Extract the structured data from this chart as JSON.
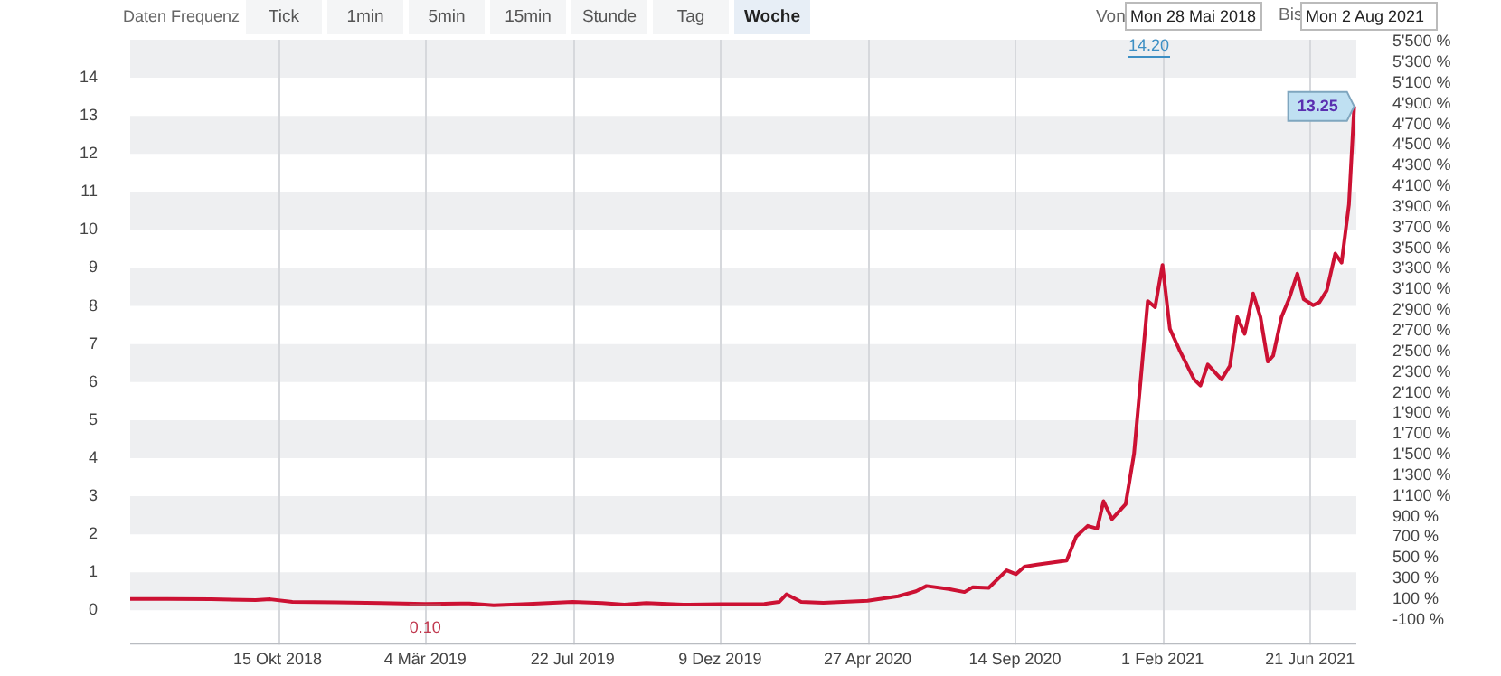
{
  "chart_data": {
    "type": "line",
    "annotations": [
      "Daten Frequenz",
      "Tick",
      "1min",
      "5min",
      "15min",
      "Stunde",
      "Tag",
      "Woche",
      "Von",
      "Mon 28 Mai 2018",
      "Bis",
      "Mon 2 Aug 2021",
      "14.20",
      {
        "text": "0.10",
        "x": "2019-03-04",
        "y": 0.1
      },
      {
        "text": "13.25",
        "x": "2021-08-02",
        "y": 13.25
      }
    ],
    "series": [
      {
        "color": "#cc1133",
        "x": [
          "2018-05-28",
          "2018-07-02",
          "2018-08-13",
          "2018-09-24",
          "2018-10-08",
          "2018-10-29",
          "2018-12-10",
          "2019-01-21",
          "2019-03-04",
          "2019-04-15",
          "2019-05-08",
          "2019-06-10",
          "2019-07-22",
          "2019-08-19",
          "2019-09-09",
          "2019-09-30",
          "2019-11-04",
          "2019-12-09",
          "2020-01-20",
          "2020-02-03",
          "2020-02-10",
          "2020-02-24",
          "2020-03-16",
          "2020-04-27",
          "2020-05-26",
          "2020-06-12",
          "2020-06-22",
          "2020-07-13",
          "2020-07-28",
          "2020-08-05",
          "2020-08-20",
          "2020-09-06",
          "2020-09-15",
          "2020-09-23",
          "2020-10-05",
          "2020-11-02",
          "2020-11-11",
          "2020-11-22",
          "2020-12-01",
          "2020-12-07",
          "2020-12-15",
          "2020-12-28",
          "2021-01-05",
          "2021-01-18",
          "2021-01-25",
          "2021-02-01",
          "2021-02-08",
          "2021-02-17",
          "2021-03-03",
          "2021-03-09",
          "2021-03-16",
          "2021-03-29",
          "2021-04-06",
          "2021-04-13",
          "2021-04-20",
          "2021-04-28",
          "2021-05-05",
          "2021-05-12",
          "2021-05-17",
          "2021-05-25",
          "2021-06-01",
          "2021-06-09",
          "2021-06-15",
          "2021-06-24",
          "2021-06-30",
          "2021-07-07",
          "2021-07-15",
          "2021-07-21",
          "2021-07-28",
          "2021-08-02"
        ],
        "values": [
          0.3,
          0.3,
          0.29,
          0.27,
          0.29,
          0.22,
          0.21,
          0.19,
          0.17,
          0.18,
          0.13,
          0.17,
          0.22,
          0.19,
          0.15,
          0.19,
          0.15,
          0.16,
          0.17,
          0.22,
          0.42,
          0.22,
          0.2,
          0.25,
          0.37,
          0.5,
          0.64,
          0.56,
          0.48,
          0.61,
          0.59,
          1.05,
          0.95,
          1.15,
          1.2,
          1.31,
          1.94,
          2.22,
          2.15,
          2.87,
          2.4,
          2.79,
          4.12,
          8.13,
          7.97,
          9.08,
          7.4,
          6.85,
          6.07,
          5.91,
          6.46,
          6.07,
          6.43,
          7.71,
          7.27,
          8.33,
          7.71,
          6.54,
          6.69,
          7.71,
          8.18,
          8.85,
          8.18,
          8.02,
          8.1,
          8.41,
          9.38,
          9.14,
          10.67,
          13.25
        ]
      }
    ],
    "xlim": [
      "2018-05-28",
      "2021-08-04"
    ],
    "xticks": [
      {
        "value": "2018-10-15",
        "label": "15 Okt 2018"
      },
      {
        "value": "2019-03-04",
        "label": "4 Mär 2019"
      },
      {
        "value": "2019-07-22",
        "label": "22 Jul 2019"
      },
      {
        "value": "2019-12-09",
        "label": "9 Dez 2019"
      },
      {
        "value": "2020-04-27",
        "label": "27 Apr 2020"
      },
      {
        "value": "2020-09-14",
        "label": "14 Sep 2020"
      },
      {
        "value": "2021-02-01",
        "label": "1 Feb 2021"
      },
      {
        "value": "2021-06-21",
        "label": "21 Jun 2021"
      }
    ],
    "ylim": [
      -0.9,
      15
    ],
    "yticks": [
      0,
      1,
      2,
      3,
      4,
      5,
      6,
      7,
      8,
      9,
      10,
      11,
      12,
      13,
      14
    ],
    "y2lim": [
      -340,
      5520
    ],
    "y2ticks": [
      {
        "value": -100,
        "label": "-100 %"
      },
      {
        "value": 100,
        "label": "100 %"
      },
      {
        "value": 300,
        "label": "300 %"
      },
      {
        "value": 500,
        "label": "500 %"
      },
      {
        "value": 700,
        "label": "700 %"
      },
      {
        "value": 900,
        "label": "900 %"
      },
      {
        "value": 1100,
        "label": "1'100 %"
      },
      {
        "value": 1300,
        "label": "1'300 %"
      },
      {
        "value": 1500,
        "label": "1'500 %"
      },
      {
        "value": 1700,
        "label": "1'700 %"
      },
      {
        "value": 1900,
        "label": "1'900 %"
      },
      {
        "value": 2100,
        "label": "2'100 %"
      },
      {
        "value": 2300,
        "label": "2'300 %"
      },
      {
        "value": 2500,
        "label": "2'500 %"
      },
      {
        "value": 2700,
        "label": "2'700 %"
      },
      {
        "value": 2900,
        "label": "2'900 %"
      },
      {
        "value": 3100,
        "label": "3'100 %"
      },
      {
        "value": 3300,
        "label": "3'300 %"
      },
      {
        "value": 3500,
        "label": "3'500 %"
      },
      {
        "value": 3700,
        "label": "3'700 %"
      },
      {
        "value": 3900,
        "label": "3'900 %"
      },
      {
        "value": 4100,
        "label": "4'100 %"
      },
      {
        "value": 4300,
        "label": "4'300 %"
      },
      {
        "value": 4500,
        "label": "4'500 %"
      },
      {
        "value": 4700,
        "label": "4'700 %"
      },
      {
        "value": 4900,
        "label": "4'900 %"
      },
      {
        "value": 5100,
        "label": "5'100 %"
      },
      {
        "value": 5300,
        "label": "5'300 %"
      },
      {
        "value": 5500,
        "label": "5'500 %"
      }
    ],
    "grid": true,
    "legend": false,
    "marker": "none",
    "line_style": "solid"
  }
}
